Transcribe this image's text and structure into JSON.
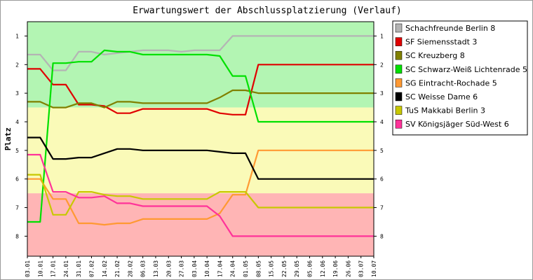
{
  "chart_data": {
    "type": "line",
    "title": "Erwartungswert der Abschlussplatzierung (Verlauf)",
    "ylabel": "Platz",
    "xlabel": "",
    "ylim": [
      0.5,
      8.7
    ],
    "y_ticks": [
      1,
      2,
      3,
      4,
      5,
      6,
      7,
      8
    ],
    "y_inverted": true,
    "bands": [
      {
        "from": 0.5,
        "to": 3.5,
        "color": "#b3f5b3"
      },
      {
        "from": 3.5,
        "to": 6.5,
        "color": "#fafab8"
      },
      {
        "from": 6.5,
        "to": 8.7,
        "color": "#ffb5b5"
      }
    ],
    "grid": false,
    "legend_position": "top-right",
    "categories": [
      "03.01",
      "10.01",
      "17.01",
      "24.01",
      "31.01",
      "07.02",
      "14.02",
      "21.02",
      "28.02",
      "06.03",
      "13.03",
      "20.03",
      "27.03",
      "03.04",
      "10.04",
      "17.04",
      "24.04",
      "01.05",
      "08.05",
      "15.05",
      "22.05",
      "29.05",
      "05.06",
      "12.06",
      "19.06",
      "26.06",
      "03.07",
      "10.07"
    ],
    "series": [
      {
        "name": "Schachfreunde Berlin 8",
        "color": "#b4b4b4",
        "values": [
          1.65,
          1.65,
          2.2,
          2.2,
          1.55,
          1.55,
          1.65,
          1.6,
          1.55,
          1.5,
          1.5,
          1.5,
          1.55,
          1.5,
          1.5,
          1.5,
          1.0,
          1.0,
          1.0,
          1.0,
          1.0,
          1.0,
          1.0,
          1.0,
          1.0,
          1.0,
          1.0,
          1.0
        ]
      },
      {
        "name": "SF Siemensstadt 3",
        "color": "#e00000",
        "values": [
          2.15,
          2.15,
          2.7,
          2.7,
          3.4,
          3.4,
          3.45,
          3.7,
          3.7,
          3.55,
          3.55,
          3.55,
          3.55,
          3.55,
          3.55,
          3.7,
          3.75,
          3.75,
          2.0,
          2.0,
          2.0,
          2.0,
          2.0,
          2.0,
          2.0,
          2.0,
          2.0,
          2.0
        ]
      },
      {
        "name": "SC Kreuzberg 8",
        "color": "#808000",
        "values": [
          3.3,
          3.3,
          3.5,
          3.5,
          3.35,
          3.35,
          3.5,
          3.3,
          3.3,
          3.35,
          3.35,
          3.35,
          3.35,
          3.35,
          3.35,
          3.15,
          2.9,
          2.9,
          3.0,
          3.0,
          3.0,
          3.0,
          3.0,
          3.0,
          3.0,
          3.0,
          3.0,
          3.0
        ]
      },
      {
        "name": "SC Schwarz-Weiß Lichtenrade 5",
        "color": "#00e000",
        "values": [
          7.5,
          7.5,
          1.95,
          1.95,
          1.9,
          1.9,
          1.5,
          1.55,
          1.55,
          1.65,
          1.65,
          1.65,
          1.65,
          1.65,
          1.65,
          1.7,
          2.4,
          2.4,
          4.0,
          4.0,
          4.0,
          4.0,
          4.0,
          4.0,
          4.0,
          4.0,
          4.0,
          4.0
        ]
      },
      {
        "name": "SG Eintracht-Rochade 5",
        "color": "#ff9933",
        "values": [
          6.0,
          6.0,
          6.7,
          6.7,
          7.55,
          7.55,
          7.6,
          7.55,
          7.55,
          7.4,
          7.4,
          7.4,
          7.4,
          7.4,
          7.4,
          7.2,
          6.55,
          6.55,
          5.0,
          5.0,
          5.0,
          5.0,
          5.0,
          5.0,
          5.0,
          5.0,
          5.0,
          5.0
        ]
      },
      {
        "name": "SC Weisse Dame 6",
        "color": "#000000",
        "values": [
          4.55,
          4.55,
          5.3,
          5.3,
          5.25,
          5.25,
          5.1,
          4.95,
          4.95,
          5.0,
          5.0,
          5.0,
          5.0,
          5.0,
          5.0,
          5.05,
          5.1,
          5.1,
          6.0,
          6.0,
          6.0,
          6.0,
          6.0,
          6.0,
          6.0,
          6.0,
          6.0,
          6.0
        ]
      },
      {
        "name": "TuS Makkabi Berlin 3",
        "color": "#c8c800",
        "values": [
          5.85,
          5.85,
          7.25,
          7.25,
          6.45,
          6.45,
          6.55,
          6.6,
          6.6,
          6.7,
          6.7,
          6.7,
          6.7,
          6.7,
          6.7,
          6.45,
          6.45,
          6.45,
          7.0,
          7.0,
          7.0,
          7.0,
          7.0,
          7.0,
          7.0,
          7.0,
          7.0,
          7.0
        ]
      },
      {
        "name": "SV Königsjäger Süd-West 6",
        "color": "#ff3399",
        "values": [
          5.15,
          5.15,
          6.45,
          6.45,
          6.65,
          6.65,
          6.6,
          6.85,
          6.85,
          6.95,
          6.95,
          6.95,
          6.95,
          6.95,
          6.95,
          7.3,
          8.0,
          8.0,
          8.0,
          8.0,
          8.0,
          8.0,
          8.0,
          8.0,
          8.0,
          8.0,
          8.0,
          8.0
        ]
      }
    ]
  }
}
